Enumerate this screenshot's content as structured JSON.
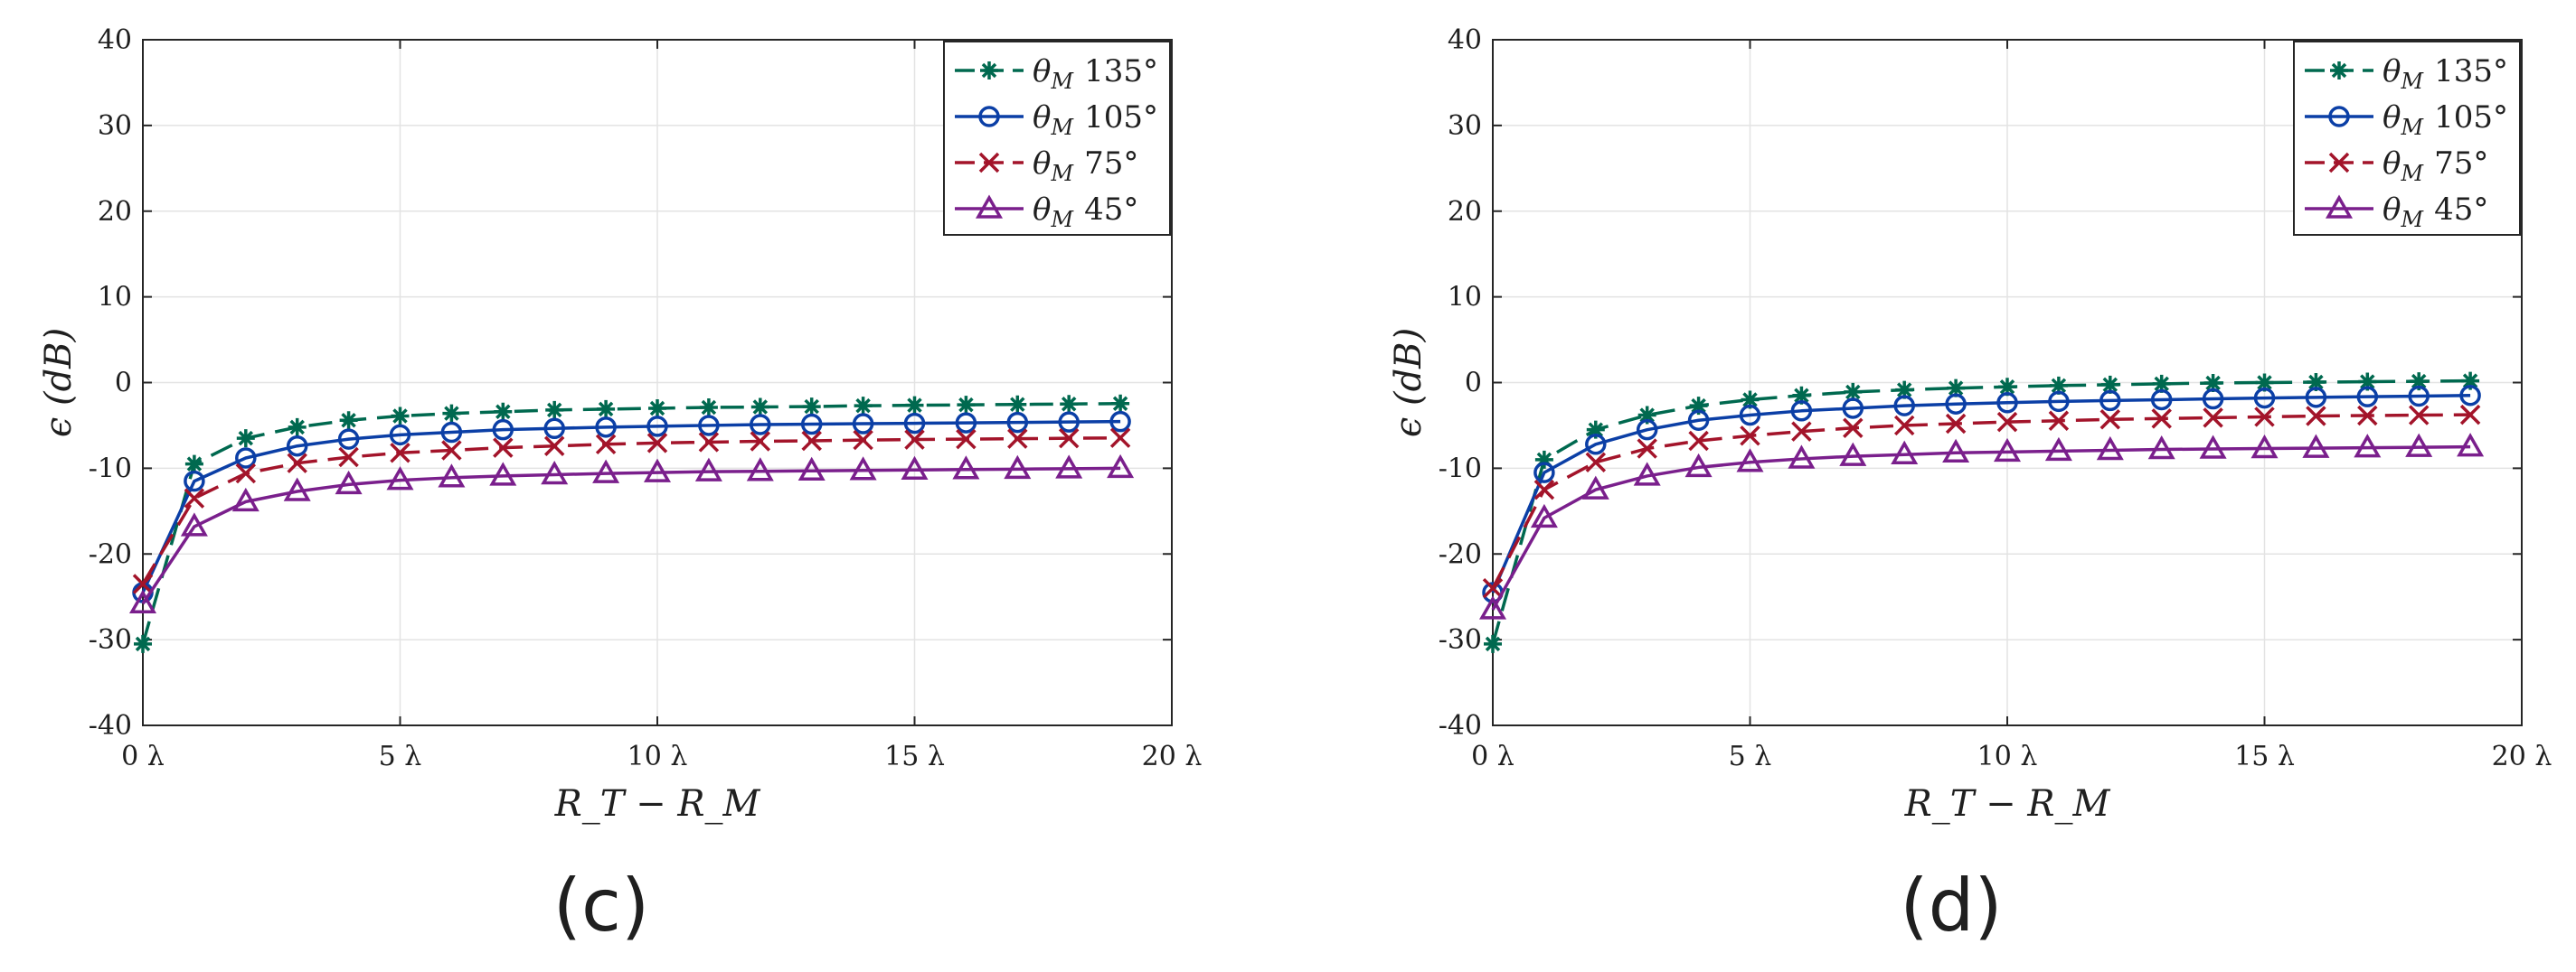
{
  "chart_data": [
    {
      "type": "line",
      "caption": "(c)",
      "xlabel": "R_T − R_M",
      "ylabel": "ϵ (dB)",
      "x": [
        0,
        1,
        2,
        3,
        4,
        5,
        6,
        7,
        8,
        9,
        10,
        11,
        12,
        13,
        14,
        15,
        16,
        17,
        18,
        19
      ],
      "xlim": [
        0,
        20
      ],
      "ylim": [
        -40,
        40
      ],
      "xticks": [
        0,
        5,
        10,
        15,
        20
      ],
      "xtick_labels": [
        "0 λ",
        "5 λ",
        "10 λ",
        "15 λ",
        "20 λ"
      ],
      "yticks": [
        40,
        30,
        20,
        10,
        0,
        -10,
        -20,
        -30,
        -40
      ],
      "ytick_labels": [
        "40",
        "30",
        "20",
        "10",
        "0",
        "-10",
        "-20",
        "-30",
        "-40"
      ],
      "grid": true,
      "legend": "top-right",
      "series": [
        {
          "name": "θ_M 135°",
          "label_sym": "θ",
          "label_sub": "M",
          "label_val": "135°",
          "color": "#00694f",
          "dash": "26,12",
          "marker": "asterisk",
          "values": [
            -30.5,
            -9.5,
            -6.5,
            -5.2,
            -4.4,
            -3.9,
            -3.6,
            -3.4,
            -3.2,
            -3.1,
            -3.0,
            -2.9,
            -2.85,
            -2.8,
            -2.7,
            -2.65,
            -2.6,
            -2.55,
            -2.5,
            -2.45
          ]
        },
        {
          "name": "θ_M 105°",
          "label_sym": "θ",
          "label_sub": "M",
          "label_val": "105°",
          "color": "#0b3fa6",
          "dash": "",
          "marker": "circle",
          "values": [
            -24.5,
            -11.5,
            -8.8,
            -7.4,
            -6.6,
            -6.1,
            -5.8,
            -5.5,
            -5.35,
            -5.2,
            -5.1,
            -5.0,
            -4.9,
            -4.85,
            -4.8,
            -4.75,
            -4.7,
            -4.65,
            -4.6,
            -4.55
          ]
        },
        {
          "name": "θ_M 75°",
          "label_sym": "θ",
          "label_sub": "M",
          "label_val": "75°",
          "color": "#a3142a",
          "dash": "26,12",
          "marker": "x",
          "values": [
            -23.5,
            -13.5,
            -10.6,
            -9.4,
            -8.7,
            -8.2,
            -7.9,
            -7.6,
            -7.4,
            -7.2,
            -7.05,
            -6.95,
            -6.85,
            -6.8,
            -6.7,
            -6.65,
            -6.6,
            -6.55,
            -6.5,
            -6.45
          ]
        },
        {
          "name": "θ_M 45°",
          "label_sym": "θ",
          "label_sub": "M",
          "label_val": "45°",
          "color": "#7a1f8c",
          "dash": "",
          "marker": "triangle",
          "values": [
            -25.8,
            -16.8,
            -13.9,
            -12.7,
            -11.9,
            -11.4,
            -11.1,
            -10.9,
            -10.75,
            -10.6,
            -10.5,
            -10.4,
            -10.35,
            -10.3,
            -10.25,
            -10.2,
            -10.15,
            -10.1,
            -10.05,
            -10.0
          ]
        }
      ]
    },
    {
      "type": "line",
      "caption": "(d)",
      "xlabel": "R_T − R_M",
      "ylabel": "ϵ (dB)",
      "x": [
        0,
        1,
        2,
        3,
        4,
        5,
        6,
        7,
        8,
        9,
        10,
        11,
        12,
        13,
        14,
        15,
        16,
        17,
        18,
        19
      ],
      "xlim": [
        0,
        20
      ],
      "ylim": [
        -40,
        40
      ],
      "xticks": [
        0,
        5,
        10,
        15,
        20
      ],
      "xtick_labels": [
        "0 λ",
        "5 λ",
        "10 λ",
        "15 λ",
        "20 λ"
      ],
      "yticks": [
        40,
        30,
        20,
        10,
        0,
        -10,
        -20,
        -30,
        -40
      ],
      "ytick_labels": [
        "40",
        "30",
        "20",
        "10",
        "0",
        "-10",
        "-20",
        "-30",
        "-40"
      ],
      "grid": true,
      "legend": "top-right",
      "series": [
        {
          "name": "θ_M 135°",
          "label_sym": "θ",
          "label_sub": "M",
          "label_val": "135°",
          "color": "#00694f",
          "dash": "26,12",
          "marker": "asterisk",
          "values": [
            -30.5,
            -9.0,
            -5.5,
            -3.8,
            -2.7,
            -2.0,
            -1.5,
            -1.1,
            -0.85,
            -0.65,
            -0.5,
            -0.35,
            -0.25,
            -0.15,
            -0.05,
            0.0,
            0.05,
            0.1,
            0.15,
            0.2
          ]
        },
        {
          "name": "θ_M 105°",
          "label_sym": "θ",
          "label_sub": "M",
          "label_val": "105°",
          "color": "#0b3fa6",
          "dash": "",
          "marker": "circle",
          "values": [
            -24.5,
            -10.5,
            -7.2,
            -5.5,
            -4.4,
            -3.8,
            -3.3,
            -3.0,
            -2.7,
            -2.5,
            -2.35,
            -2.2,
            -2.1,
            -2.0,
            -1.9,
            -1.8,
            -1.72,
            -1.65,
            -1.58,
            -1.5
          ]
        },
        {
          "name": "θ_M 75°",
          "label_sym": "θ",
          "label_sub": "M",
          "label_val": "75°",
          "color": "#a3142a",
          "dash": "26,12",
          "marker": "x",
          "values": [
            -24.0,
            -12.5,
            -9.3,
            -7.7,
            -6.8,
            -6.2,
            -5.7,
            -5.3,
            -5.0,
            -4.8,
            -4.6,
            -4.45,
            -4.3,
            -4.2,
            -4.1,
            -4.0,
            -3.9,
            -3.85,
            -3.8,
            -3.75
          ]
        },
        {
          "name": "θ_M 45°",
          "label_sym": "θ",
          "label_sub": "M",
          "label_val": "45°",
          "color": "#7a1f8c",
          "dash": "",
          "marker": "triangle",
          "values": [
            -26.5,
            -15.8,
            -12.5,
            -10.9,
            -9.9,
            -9.3,
            -8.9,
            -8.6,
            -8.4,
            -8.2,
            -8.1,
            -8.0,
            -7.9,
            -7.8,
            -7.75,
            -7.7,
            -7.65,
            -7.6,
            -7.55,
            -7.5
          ]
        }
      ]
    }
  ]
}
